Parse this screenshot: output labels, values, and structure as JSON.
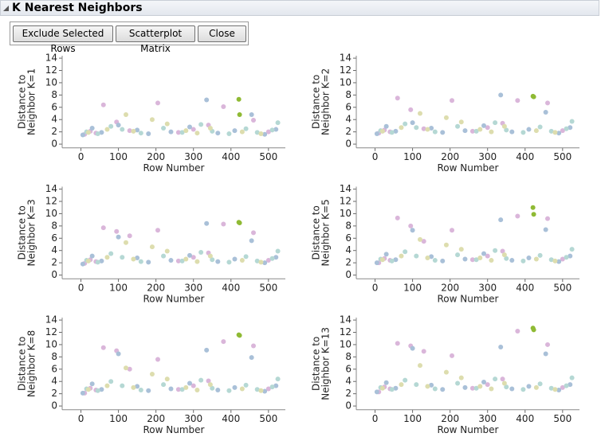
{
  "header": {
    "title": "K Nearest Neighbors"
  },
  "buttons": [
    "Exclude Selected Rows",
    "Scatterplot Matrix",
    "Close"
  ],
  "chart_data": [
    {
      "type": "scatter",
      "ylabel": [
        "Distance to",
        "Neighbor K=1"
      ],
      "xlabel": "Row Number",
      "xlim": [
        -50,
        545
      ],
      "ylim": [
        -0.6,
        14.4
      ],
      "xticks": [
        0,
        100,
        200,
        300,
        400,
        500
      ],
      "yticks": [
        0,
        2,
        4,
        6,
        8,
        10,
        12,
        14
      ],
      "series": [
        {
          "color": "#dab6da",
          "x": [
            10,
            25,
            40,
            60,
            95,
            130,
            205,
            260,
            300,
            340,
            380,
            460,
            500
          ],
          "values": [
            1.6,
            2.1,
            1.8,
            6.4,
            3.6,
            2.2,
            6.7,
            1.9,
            2.4,
            3.1,
            6.1,
            3.9,
            2.0
          ]
        },
        {
          "color": "#a9c0d8",
          "x": [
            5,
            30,
            55,
            100,
            150,
            180,
            240,
            290,
            335,
            365,
            410,
            455,
            490,
            520
          ],
          "values": [
            1.5,
            2.6,
            1.9,
            3.1,
            2.3,
            1.7,
            2.0,
            2.8,
            7.2,
            1.8,
            2.2,
            4.8,
            1.6,
            2.4
          ]
        },
        {
          "color": "#b5d8d4",
          "x": [
            15,
            45,
            80,
            110,
            160,
            220,
            270,
            320,
            350,
            395,
            440,
            470,
            510,
            525
          ],
          "values": [
            2.0,
            1.7,
            2.9,
            2.4,
            1.8,
            2.6,
            1.9,
            3.2,
            2.1,
            1.7,
            2.5,
            1.9,
            2.3,
            3.5
          ]
        },
        {
          "color": "#ddddae",
          "x": [
            20,
            70,
            120,
            140,
            190,
            230,
            280,
            310,
            345,
            430,
            480
          ],
          "values": [
            1.9,
            2.4,
            4.8,
            2.1,
            4.0,
            3.3,
            2.2,
            1.8,
            2.6,
            2.0,
            1.7
          ]
        },
        {
          "color": "#8fba34",
          "x": [
            421,
            423
          ],
          "values": [
            7.3,
            4.8
          ]
        }
      ]
    },
    {
      "type": "scatter",
      "ylabel": [
        "Distance to",
        "Neighbor K=2"
      ],
      "xlabel": "Row Number",
      "xlim": [
        -50,
        545
      ],
      "ylim": [
        -0.6,
        14.4
      ],
      "xticks": [
        0,
        100,
        200,
        300,
        400,
        500
      ],
      "yticks": [
        0,
        2,
        4,
        6,
        8,
        10,
        12,
        14
      ],
      "series": [
        {
          "color": "#dab6da",
          "x": [
            10,
            25,
            40,
            60,
            95,
            130,
            205,
            260,
            300,
            340,
            380,
            460,
            500
          ],
          "values": [
            1.8,
            2.3,
            2.0,
            7.5,
            5.6,
            2.5,
            7.1,
            2.1,
            2.7,
            3.4,
            7.1,
            6.7,
            2.2
          ]
        },
        {
          "color": "#a9c0d8",
          "x": [
            5,
            30,
            55,
            100,
            150,
            180,
            240,
            290,
            335,
            365,
            410,
            455,
            490,
            520
          ],
          "values": [
            1.7,
            2.9,
            2.1,
            3.5,
            2.6,
            1.9,
            2.2,
            3.0,
            8.0,
            2.0,
            2.4,
            5.2,
            1.8,
            2.7
          ]
        },
        {
          "color": "#b5d8d4",
          "x": [
            15,
            45,
            80,
            110,
            160,
            220,
            270,
            320,
            350,
            395,
            440,
            470,
            510,
            525
          ],
          "values": [
            2.2,
            1.9,
            3.3,
            2.7,
            2.0,
            2.9,
            2.1,
            3.5,
            2.3,
            1.9,
            2.8,
            2.1,
            2.5,
            3.7
          ]
        },
        {
          "color": "#ddddae",
          "x": [
            20,
            70,
            120,
            140,
            190,
            230,
            280,
            310,
            345,
            430,
            480
          ],
          "values": [
            2.1,
            2.7,
            5.0,
            2.4,
            4.3,
            3.6,
            2.4,
            2.0,
            2.9,
            2.2,
            1.9
          ]
        },
        {
          "color": "#8fba34",
          "x": [
            421,
            423
          ],
          "values": [
            7.8,
            7.7
          ]
        }
      ]
    },
    {
      "type": "scatter",
      "ylabel": [
        "Distance to",
        "Neighbor K=3"
      ],
      "xlabel": "Row Number",
      "xlim": [
        -50,
        545
      ],
      "ylim": [
        -0.6,
        14.4
      ],
      "xticks": [
        0,
        100,
        200,
        300,
        400,
        500
      ],
      "yticks": [
        0,
        2,
        4,
        6,
        8,
        10,
        12,
        14
      ],
      "series": [
        {
          "color": "#dab6da",
          "x": [
            10,
            25,
            40,
            60,
            95,
            130,
            205,
            260,
            300,
            340,
            380,
            460,
            500
          ],
          "values": [
            1.9,
            2.5,
            2.2,
            7.7,
            7.1,
            6.4,
            7.3,
            2.3,
            2.9,
            3.6,
            8.3,
            6.9,
            2.4
          ]
        },
        {
          "color": "#a9c0d8",
          "x": [
            5,
            30,
            55,
            100,
            150,
            180,
            240,
            290,
            335,
            365,
            410,
            455,
            490,
            520
          ],
          "values": [
            1.8,
            3.1,
            2.3,
            6.2,
            2.8,
            2.1,
            2.4,
            3.2,
            8.4,
            2.2,
            2.6,
            5.6,
            2.0,
            2.9
          ]
        },
        {
          "color": "#b5d8d4",
          "x": [
            15,
            45,
            80,
            110,
            160,
            220,
            270,
            320,
            350,
            395,
            440,
            470,
            510,
            525
          ],
          "values": [
            2.4,
            2.1,
            3.5,
            2.9,
            2.2,
            3.1,
            2.3,
            3.7,
            2.5,
            2.1,
            3.0,
            2.3,
            2.7,
            3.9
          ]
        },
        {
          "color": "#ddddae",
          "x": [
            20,
            70,
            120,
            140,
            190,
            230,
            280,
            310,
            345,
            430,
            480
          ],
          "values": [
            2.3,
            2.9,
            5.3,
            2.6,
            4.6,
            3.9,
            2.6,
            2.2,
            3.1,
            2.4,
            2.1
          ]
        },
        {
          "color": "#8fba34",
          "x": [
            421,
            423
          ],
          "values": [
            8.6,
            8.5
          ]
        }
      ]
    },
    {
      "type": "scatter",
      "ylabel": [
        "Distance to",
        "Neighbor K=5"
      ],
      "xlabel": "Row Number",
      "xlim": [
        -50,
        545
      ],
      "ylim": [
        -0.6,
        14.4
      ],
      "xticks": [
        0,
        100,
        200,
        300,
        400,
        500
      ],
      "yticks": [
        0,
        2,
        4,
        6,
        8,
        10,
        12,
        14
      ],
      "series": [
        {
          "color": "#dab6da",
          "x": [
            10,
            25,
            40,
            60,
            95,
            130,
            205,
            260,
            300,
            340,
            380,
            460,
            500
          ],
          "values": [
            2.0,
            2.7,
            2.4,
            9.3,
            8.0,
            5.5,
            7.3,
            2.5,
            3.1,
            3.9,
            9.6,
            9.2,
            2.6
          ]
        },
        {
          "color": "#a9c0d8",
          "x": [
            5,
            30,
            55,
            100,
            150,
            180,
            240,
            290,
            335,
            365,
            410,
            455,
            490,
            520
          ],
          "values": [
            2.0,
            3.4,
            2.5,
            7.3,
            3.0,
            2.3,
            2.6,
            3.5,
            9.0,
            2.4,
            2.8,
            7.4,
            2.2,
            3.1
          ]
        },
        {
          "color": "#b5d8d4",
          "x": [
            15,
            45,
            80,
            110,
            160,
            220,
            270,
            320,
            350,
            395,
            440,
            470,
            510,
            525
          ],
          "values": [
            2.6,
            2.3,
            3.8,
            3.1,
            2.4,
            3.3,
            2.5,
            4.0,
            2.7,
            2.3,
            3.2,
            2.5,
            2.9,
            4.2
          ]
        },
        {
          "color": "#ddddae",
          "x": [
            20,
            70,
            120,
            140,
            190,
            230,
            280,
            310,
            345,
            430,
            480
          ],
          "values": [
            2.5,
            3.1,
            5.8,
            2.8,
            4.9,
            4.2,
            2.8,
            2.4,
            3.3,
            2.6,
            2.3
          ]
        },
        {
          "color": "#8fba34",
          "x": [
            421,
            423
          ],
          "values": [
            11.0,
            9.9
          ]
        }
      ]
    },
    {
      "type": "scatter",
      "ylabel": [
        "Distance to",
        "Neighbor K=8"
      ],
      "xlabel": "Row Number",
      "xlim": [
        -50,
        545
      ],
      "ylim": [
        -0.6,
        14.4
      ],
      "xticks": [
        0,
        100,
        200,
        300,
        400,
        500
      ],
      "yticks": [
        0,
        2,
        4,
        6,
        8,
        10,
        12,
        14
      ],
      "series": [
        {
          "color": "#dab6da",
          "x": [
            10,
            25,
            40,
            60,
            95,
            130,
            205,
            260,
            300,
            340,
            380,
            460,
            500
          ],
          "values": [
            2.1,
            2.9,
            2.6,
            9.5,
            9.0,
            6.0,
            7.6,
            2.7,
            3.3,
            4.1,
            10.5,
            9.8,
            2.8
          ]
        },
        {
          "color": "#a9c0d8",
          "x": [
            5,
            30,
            55,
            100,
            150,
            180,
            240,
            290,
            335,
            365,
            410,
            455,
            490,
            520
          ],
          "values": [
            2.1,
            3.6,
            2.7,
            8.5,
            3.2,
            2.5,
            2.8,
            3.7,
            9.1,
            2.6,
            3.0,
            7.9,
            2.4,
            3.3
          ]
        },
        {
          "color": "#b5d8d4",
          "x": [
            15,
            45,
            80,
            110,
            160,
            220,
            270,
            320,
            350,
            395,
            440,
            470,
            510,
            525
          ],
          "values": [
            2.8,
            2.5,
            4.0,
            3.3,
            2.6,
            3.5,
            2.7,
            4.2,
            2.9,
            2.5,
            3.4,
            2.7,
            3.1,
            4.4
          ]
        },
        {
          "color": "#ddddae",
          "x": [
            20,
            70,
            120,
            140,
            190,
            230,
            280,
            310,
            345,
            430,
            480
          ],
          "values": [
            2.7,
            3.3,
            6.2,
            3.0,
            5.2,
            4.4,
            3.0,
            2.6,
            3.5,
            2.8,
            2.5
          ]
        },
        {
          "color": "#8fba34",
          "x": [
            421,
            423
          ],
          "values": [
            11.6,
            11.5
          ]
        }
      ]
    },
    {
      "type": "scatter",
      "ylabel": [
        "Distance to",
        "Neighbor K=13"
      ],
      "xlabel": "Row Number",
      "xlim": [
        -50,
        545
      ],
      "ylim": [
        -0.6,
        14.4
      ],
      "xticks": [
        0,
        100,
        200,
        300,
        400,
        500
      ],
      "yticks": [
        0,
        2,
        4,
        6,
        8,
        10,
        12,
        14
      ],
      "series": [
        {
          "color": "#dab6da",
          "x": [
            10,
            25,
            40,
            60,
            95,
            130,
            205,
            260,
            300,
            340,
            380,
            460,
            500
          ],
          "values": [
            2.3,
            3.1,
            2.8,
            10.2,
            9.8,
            8.9,
            8.2,
            2.9,
            3.5,
            4.4,
            12.2,
            10.0,
            3.0
          ]
        },
        {
          "color": "#a9c0d8",
          "x": [
            5,
            30,
            55,
            100,
            150,
            180,
            240,
            290,
            335,
            365,
            410,
            455,
            490,
            520
          ],
          "values": [
            2.3,
            3.8,
            2.9,
            9.4,
            3.4,
            2.7,
            3.0,
            3.9,
            9.6,
            2.8,
            3.2,
            8.5,
            2.6,
            3.5
          ]
        },
        {
          "color": "#b5d8d4",
          "x": [
            15,
            45,
            80,
            110,
            160,
            220,
            270,
            320,
            350,
            395,
            440,
            470,
            510,
            525
          ],
          "values": [
            3.0,
            2.7,
            4.2,
            3.5,
            2.8,
            3.7,
            2.9,
            4.4,
            3.1,
            2.7,
            3.6,
            2.9,
            3.3,
            4.6
          ]
        },
        {
          "color": "#ddddae",
          "x": [
            20,
            70,
            120,
            140,
            190,
            230,
            280,
            310,
            345,
            430,
            480
          ],
          "values": [
            2.9,
            3.5,
            6.6,
            3.2,
            5.5,
            4.6,
            3.2,
            2.8,
            3.7,
            3.0,
            2.7
          ]
        },
        {
          "color": "#8fba34",
          "x": [
            421,
            423
          ],
          "values": [
            12.7,
            12.4
          ]
        }
      ]
    }
  ]
}
